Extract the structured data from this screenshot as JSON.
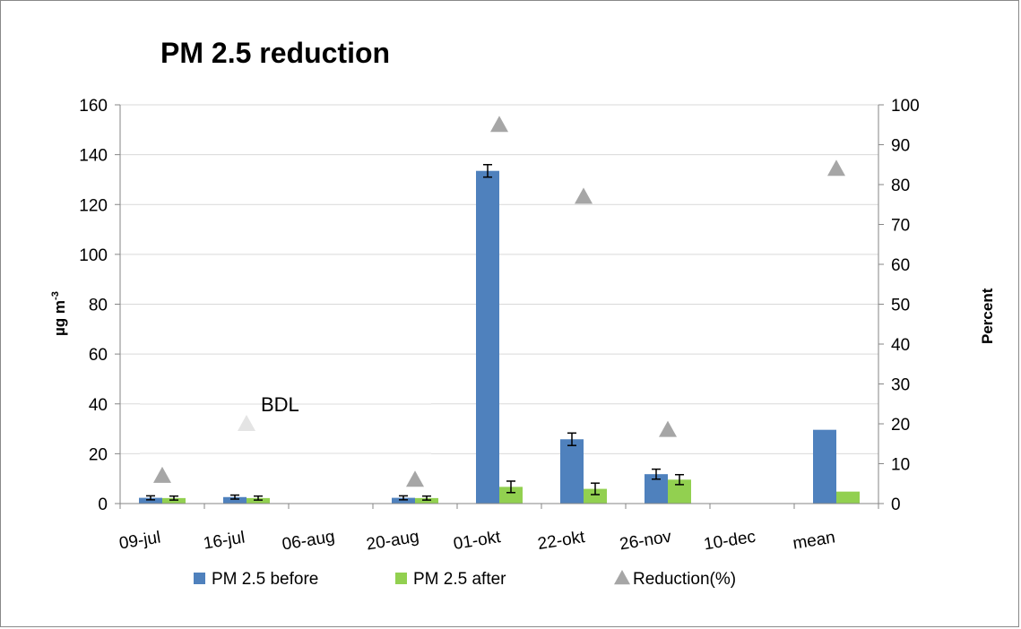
{
  "chart_data": {
    "type": "bar",
    "title": "PM 2.5 reduction",
    "categories": [
      "09-jul",
      "16-jul",
      "06-aug",
      "20-aug",
      "01-okt",
      "22-okt",
      "26-nov",
      "10-dec",
      "mean"
    ],
    "ylabel": "µg m",
    "ylabel_superscript": "-3",
    "y2label": "Percent",
    "ylim": [
      0,
      160
    ],
    "yticks": [
      "0",
      "20",
      "40",
      "60",
      "80",
      "100",
      "120",
      "140",
      "160"
    ],
    "y2lim": [
      0,
      100
    ],
    "y2ticks": [
      "0",
      "10",
      "20",
      "30",
      "40",
      "50",
      "60",
      "70",
      "80",
      "90",
      "100"
    ],
    "annotation": "BDL",
    "legend_position": "bottom",
    "series": [
      {
        "name": "PM 2.5 before",
        "type": "bar",
        "axis": "left",
        "color": "#4f81bd",
        "values": [
          2.3,
          2.6,
          null,
          2.3,
          133.5,
          25.8,
          11.8,
          null,
          29.6
        ],
        "errors": [
          0.8,
          0.8,
          null,
          0.8,
          2.5,
          2.5,
          2.0,
          null,
          null
        ]
      },
      {
        "name": "PM 2.5 after",
        "type": "bar",
        "axis": "left",
        "color": "#92d050",
        "values": [
          2.2,
          2.2,
          null,
          2.2,
          6.7,
          5.9,
          9.6,
          null,
          4.8
        ],
        "errors": [
          0.8,
          0.8,
          null,
          0.8,
          2.3,
          2.3,
          2.0,
          null,
          null
        ]
      },
      {
        "name": "Reduction(%)",
        "type": "scatter",
        "axis": "right",
        "marker": "triangle",
        "color": "#a6a6a6",
        "values": [
          7,
          20,
          null,
          6,
          95,
          77,
          18.5,
          null,
          84
        ],
        "faded": [
          false,
          true,
          false,
          false,
          false,
          false,
          false,
          false,
          false
        ]
      }
    ]
  }
}
